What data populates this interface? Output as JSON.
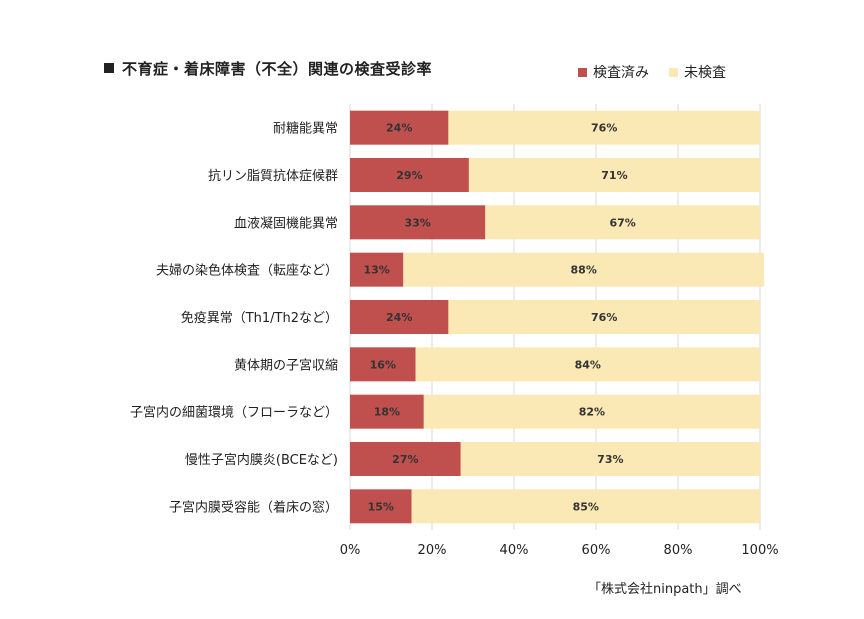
{
  "chart_data": {
    "type": "bar",
    "orientation": "horizontal",
    "stacked": true,
    "title": "不育症・着床障害（不全）関連の検査受診率",
    "categories": [
      "耐糖能異常",
      "抗リン脂質抗体症候群",
      "血液凝固機能異常",
      "夫婦の染色体検査（転座など）",
      "免疫異常（Th1/Th2など）",
      "黄体期の子宮収縮",
      "子宮内の細菌環境（フローラなど）",
      "慢性子宮内膜炎(BCEなど)",
      "子宮内膜受容能（着床の窓）"
    ],
    "series": [
      {
        "name": "検査済み",
        "color": "#c0504d",
        "values": [
          24,
          29,
          33,
          13,
          24,
          16,
          18,
          27,
          15
        ]
      },
      {
        "name": "未検査",
        "color": "#fae8b5",
        "values": [
          76,
          71,
          67,
          88,
          76,
          84,
          82,
          73,
          85
        ]
      }
    ],
    "value_suffix": "%",
    "xlim": [
      0,
      100
    ],
    "x_ticks": [
      "0%",
      "20%",
      "40%",
      "60%",
      "80%",
      "100%"
    ],
    "grid": true,
    "legend_position": "top-right"
  },
  "source_note": "「株式会社ninpath」調べ"
}
